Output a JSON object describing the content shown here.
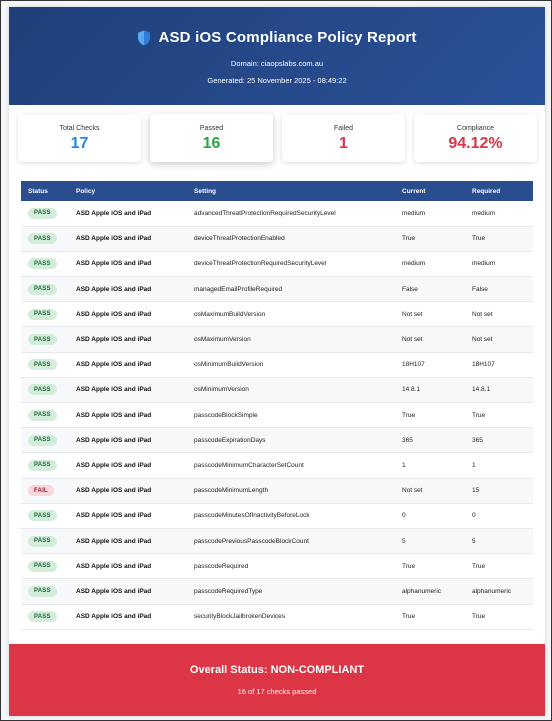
{
  "header": {
    "title": "ASD iOS Compliance Policy Report",
    "icon": "shield-icon",
    "domain": "Domain: ciaopslabs.com.au",
    "generated": "Generated: 25 November 2025 - 08:49:22"
  },
  "stats": {
    "total_label": "Total Checks",
    "total_value": "17",
    "passed_label": "Passed",
    "passed_value": "16",
    "failed_label": "Failed",
    "failed_value": "1",
    "compliance_label": "Compliance",
    "compliance_value": "94.12%"
  },
  "colors": {
    "header": "#2a5298",
    "total": "#1e88e5",
    "passed": "#28a745",
    "failed": "#dc3545",
    "compliance": "#dc3545",
    "footer": "#dc3545"
  },
  "table": {
    "headers": [
      "Status",
      "Policy",
      "Setting",
      "Current",
      "Required"
    ],
    "rows": [
      {
        "status": "PASS",
        "policy": "ASD Apple iOS and iPad",
        "setting": "advancedThreatProtectionRequiredSecurityLevel",
        "current": "medium",
        "required": "medium"
      },
      {
        "status": "PASS",
        "policy": "ASD Apple iOS and iPad",
        "setting": "deviceThreatProtectionEnabled",
        "current": "True",
        "required": "True"
      },
      {
        "status": "PASS",
        "policy": "ASD Apple iOS and iPad",
        "setting": "deviceThreatProtectionRequiredSecurityLevel",
        "current": "medium",
        "required": "medium"
      },
      {
        "status": "PASS",
        "policy": "ASD Apple iOS and iPad",
        "setting": "managedEmailProfileRequired",
        "current": "False",
        "required": "False"
      },
      {
        "status": "PASS",
        "policy": "ASD Apple iOS and iPad",
        "setting": "osMaximumBuildVersion",
        "current": "Not set",
        "required": "Not set"
      },
      {
        "status": "PASS",
        "policy": "ASD Apple iOS and iPad",
        "setting": "osMaximumVersion",
        "current": "Not set",
        "required": "Not set"
      },
      {
        "status": "PASS",
        "policy": "ASD Apple iOS and iPad",
        "setting": "osMinimumBuildVersion",
        "current": "18H107",
        "required": "18H107"
      },
      {
        "status": "PASS",
        "policy": "ASD Apple iOS and iPad",
        "setting": "osMinimumVersion",
        "current": "14.8.1",
        "required": "14.8.1"
      },
      {
        "status": "PASS",
        "policy": "ASD Apple iOS and iPad",
        "setting": "passcodeBlockSimple",
        "current": "True",
        "required": "True"
      },
      {
        "status": "PASS",
        "policy": "ASD Apple iOS and iPad",
        "setting": "passcodeExpirationDays",
        "current": "365",
        "required": "365"
      },
      {
        "status": "PASS",
        "policy": "ASD Apple iOS and iPad",
        "setting": "passcodeMinimumCharacterSetCount",
        "current": "1",
        "required": "1"
      },
      {
        "status": "FAIL",
        "policy": "ASD Apple iOS and iPad",
        "setting": "passcodeMinimumLength",
        "current": "Not set",
        "required": "15"
      },
      {
        "status": "PASS",
        "policy": "ASD Apple iOS and iPad",
        "setting": "passcodeMinutesOfInactivityBeforeLock",
        "current": "0",
        "required": "0"
      },
      {
        "status": "PASS",
        "policy": "ASD Apple iOS and iPad",
        "setting": "passcodePreviousPasscodeBlockCount",
        "current": "5",
        "required": "5"
      },
      {
        "status": "PASS",
        "policy": "ASD Apple iOS and iPad",
        "setting": "passcodeRequired",
        "current": "True",
        "required": "True"
      },
      {
        "status": "PASS",
        "policy": "ASD Apple iOS and iPad",
        "setting": "passcodeRequiredType",
        "current": "alphanumeric",
        "required": "alphanumeric"
      },
      {
        "status": "PASS",
        "policy": "ASD Apple iOS and iPad",
        "setting": "securityBlockJailbrokenDevices",
        "current": "True",
        "required": "True"
      }
    ]
  },
  "footer": {
    "status": "Overall Status: NON-COMPLIANT",
    "detail": "16 of 17 checks passed"
  }
}
